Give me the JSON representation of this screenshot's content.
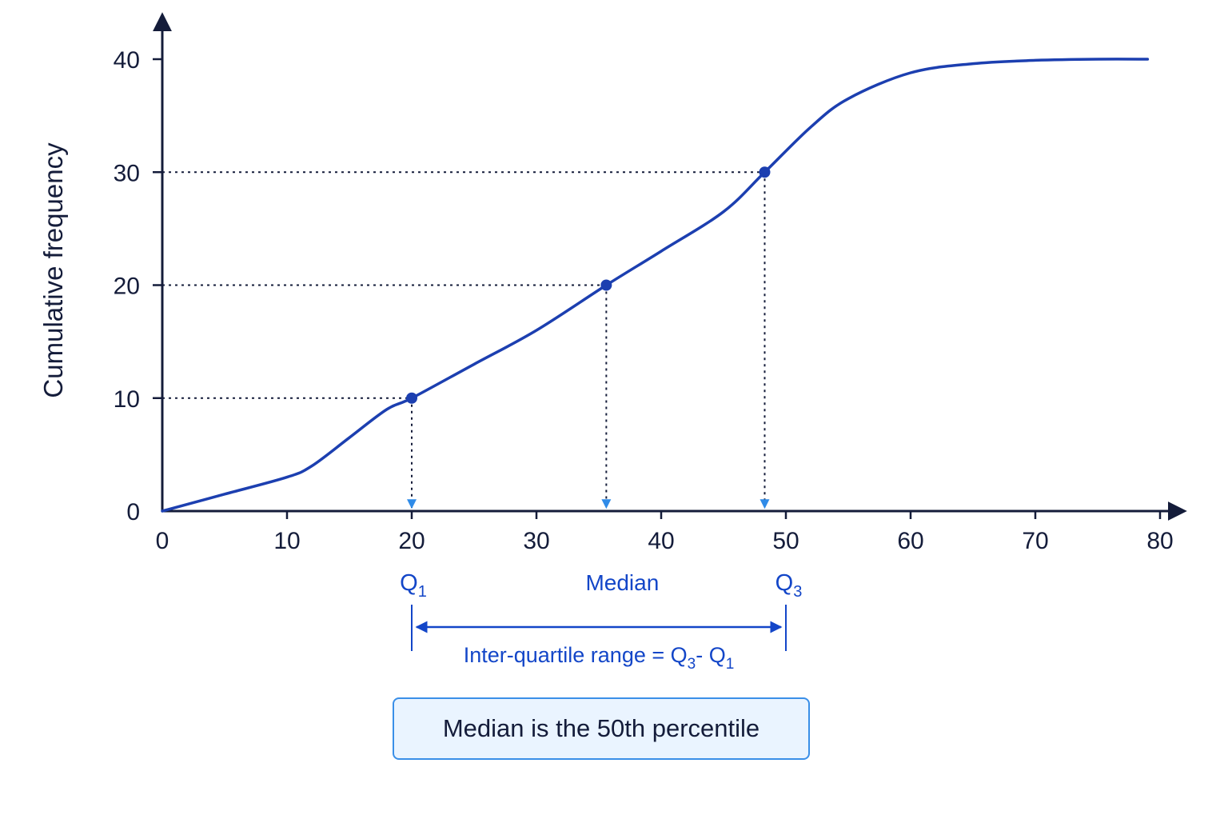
{
  "chart_data": {
    "type": "line",
    "xlabel": "",
    "ylabel": "Cumulative frequency",
    "xlim": [
      0,
      80
    ],
    "ylim": [
      0,
      40
    ],
    "x_ticks": [
      "0",
      "10",
      "20",
      "30",
      "40",
      "50",
      "60",
      "70",
      "80"
    ],
    "y_ticks": [
      "0",
      "10",
      "20",
      "30",
      "40"
    ],
    "grid": false,
    "series": [
      {
        "x": [
          0,
          5,
          10,
          12,
          15,
          18,
          20,
          25,
          30,
          35.6,
          40,
          45,
          48.3,
          52,
          55,
          60,
          65,
          70,
          75,
          79
        ],
        "y": [
          0,
          1.5,
          3,
          4,
          6.5,
          9,
          10,
          13,
          16,
          20,
          23,
          26.5,
          30,
          34,
          36.5,
          38.8,
          39.6,
          39.9,
          40,
          40
        ]
      }
    ],
    "markers": [
      {
        "x": 20,
        "y": 10
      },
      {
        "x": 35.6,
        "y": 20
      },
      {
        "x": 48.3,
        "y": 30
      }
    ],
    "annotations": {
      "q1": {
        "base": "Q",
        "sub": "1",
        "x": 20
      },
      "median": {
        "label": "Median",
        "x": 35.6
      },
      "q3": {
        "base": "Q",
        "sub": "3",
        "x": 48.3
      },
      "iqr": {
        "text": "Inter-quartile range = Q",
        "sub_a": "3",
        "mid": "- Q",
        "sub_b": "1",
        "x_start": 20,
        "x_end": 50
      }
    },
    "note": "Median is the 50th percentile"
  },
  "colors": {
    "curve": "#1c3fb0",
    "axis": "#141c3a",
    "arrow_tip": "#2f8be8",
    "annotation": "#1346c8"
  }
}
